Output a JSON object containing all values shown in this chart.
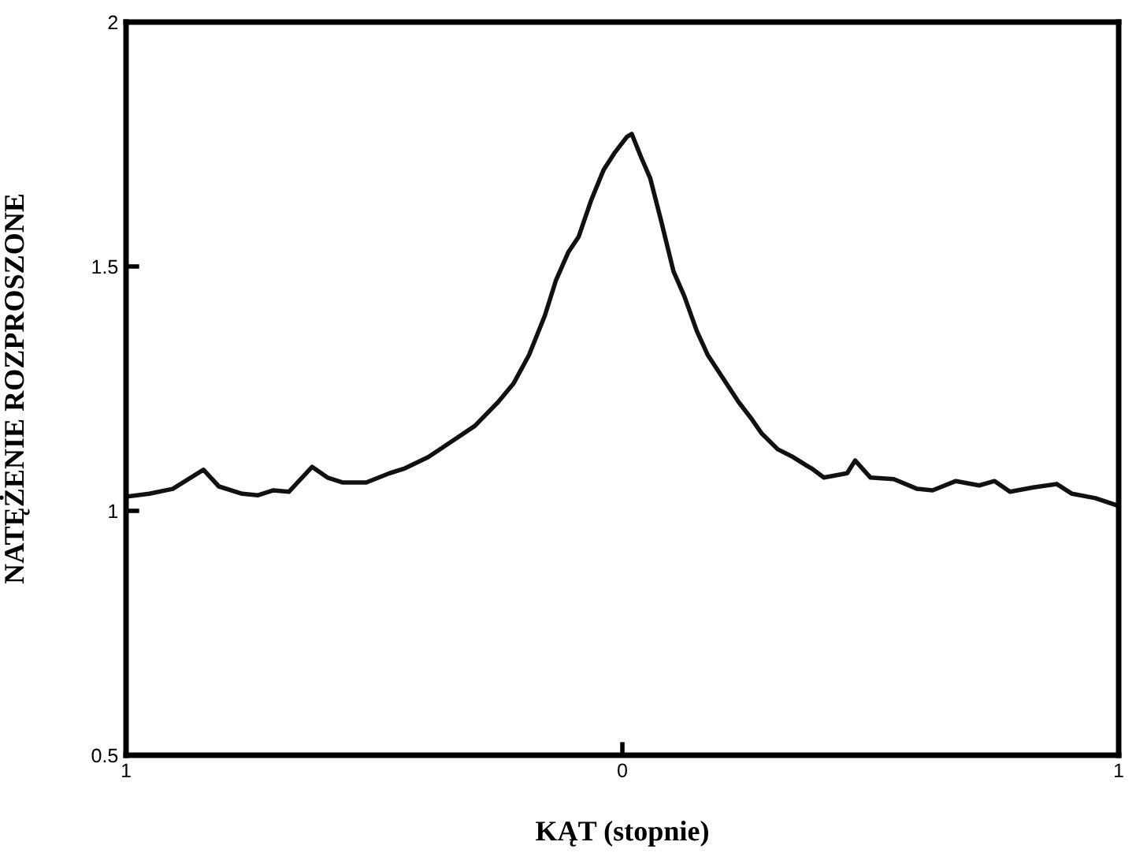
{
  "chart_data": {
    "type": "line",
    "xlabel": "KĄT (stopnie)",
    "ylabel": "NATĘŻENIE ROZPROSZONE",
    "xlim": [
      -1,
      1
    ],
    "ylim": [
      0.5,
      2
    ],
    "xticks": [
      {
        "value": -1,
        "label": "1"
      },
      0,
      1
    ],
    "yticks": [
      0.5,
      1.5,
      1,
      2
    ],
    "grid": false,
    "marker": "none",
    "line_style": "solid",
    "series": [
      {
        "color": "#111111",
        "x": [
          -1.0,
          -0.953,
          -0.906,
          -0.844,
          -0.813,
          -0.766,
          -0.734,
          -0.703,
          -0.672,
          -0.625,
          -0.594,
          -0.563,
          -0.516,
          -0.469,
          -0.438,
          -0.391,
          -0.344,
          -0.297,
          -0.25,
          -0.219,
          -0.188,
          -0.156,
          -0.134,
          -0.109,
          -0.088,
          -0.063,
          -0.038,
          -0.016,
          0.009,
          0.019,
          0.038,
          0.056,
          0.078,
          0.103,
          0.125,
          0.15,
          0.172,
          0.203,
          0.234,
          0.259,
          0.281,
          0.313,
          0.344,
          0.369,
          0.381,
          0.406,
          0.453,
          0.469,
          0.5,
          0.547,
          0.594,
          0.625,
          0.672,
          0.719,
          0.75,
          0.781,
          0.828,
          0.875,
          0.906,
          0.953,
          1.0
        ],
        "values": [
          1.029,
          1.035,
          1.045,
          1.084,
          1.05,
          1.035,
          1.032,
          1.042,
          1.039,
          1.09,
          1.068,
          1.058,
          1.058,
          1.077,
          1.087,
          1.11,
          1.142,
          1.174,
          1.223,
          1.261,
          1.319,
          1.4,
          1.471,
          1.529,
          1.561,
          1.635,
          1.697,
          1.732,
          1.765,
          1.771,
          1.723,
          1.681,
          1.594,
          1.49,
          1.439,
          1.368,
          1.319,
          1.271,
          1.223,
          1.19,
          1.158,
          1.126,
          1.11,
          1.094,
          1.087,
          1.068,
          1.077,
          1.103,
          1.068,
          1.065,
          1.045,
          1.042,
          1.061,
          1.052,
          1.061,
          1.039,
          1.048,
          1.055,
          1.035,
          1.026,
          1.01
        ]
      }
    ]
  }
}
